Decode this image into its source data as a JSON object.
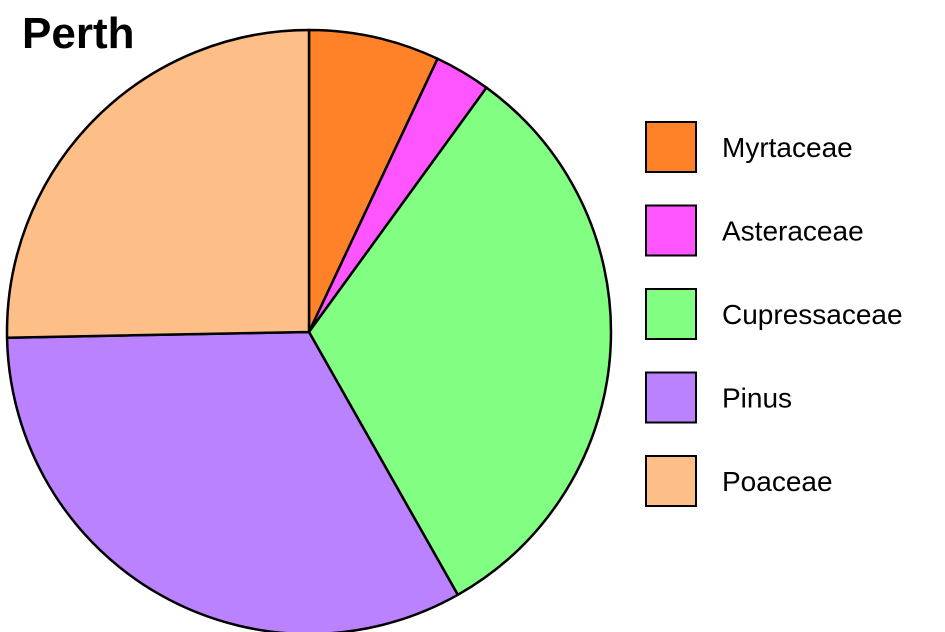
{
  "chart_data": {
    "type": "pie",
    "title": "Perth",
    "start_angle_deg": 0,
    "direction": "clockwise",
    "legend_position": "right",
    "slices": [
      {
        "label": "Myrtaceae",
        "value": 7.0,
        "color": "#FF8228"
      },
      {
        "label": "Asteraceae",
        "value": 3.0,
        "color": "#FF55FF"
      },
      {
        "label": "Cupressaceae",
        "value": 31.8,
        "color": "#82FF82"
      },
      {
        "label": "Pinus",
        "value": 32.9,
        "color": "#BB82FF"
      },
      {
        "label": "Poaceae",
        "value": 25.3,
        "color": "#FDBE87"
      }
    ]
  }
}
